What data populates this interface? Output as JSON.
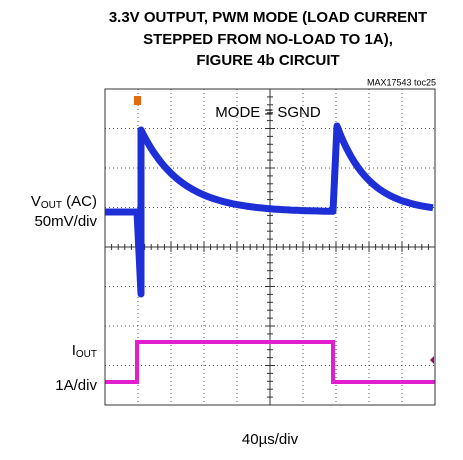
{
  "header": {
    "title_lines": [
      "3.3V OUTPUT, PWM MODE (LOAD CURRENT",
      "STEPPED FROM NO-LOAD TO 1A),",
      "FIGURE 4b CIRCUIT"
    ],
    "tag": "MAX17543 toc25"
  },
  "annotation": "MODE = SGND",
  "channels": [
    {
      "symbol": "V",
      "subscript": "OUT",
      "suffix": " (AC)",
      "scale": "50mV/div"
    },
    {
      "symbol": "I",
      "subscript": "OUT",
      "scale": "1A/div"
    }
  ],
  "timebase": "40µs/div"
}
